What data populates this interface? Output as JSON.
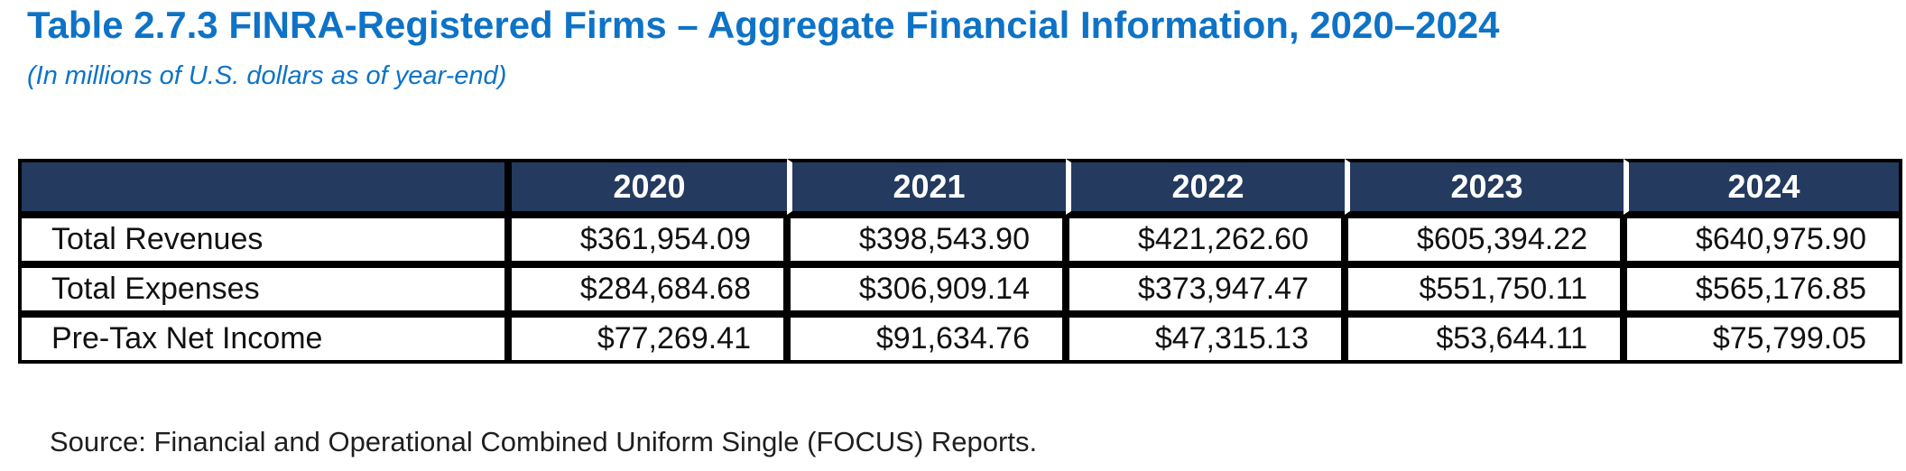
{
  "header": {
    "title": "Table 2.7.3 FINRA-Registered Firms – Aggregate Financial Information, 2020–2024",
    "subtitle": "(In millions of U.S. dollars as of year-end)"
  },
  "table": {
    "columns": [
      "2020",
      "2021",
      "2022",
      "2023",
      "2024"
    ],
    "rows": [
      {
        "label": "Total Revenues",
        "values": [
          "$361,954.09",
          "$398,543.90",
          "$421,262.60",
          "$605,394.22",
          "$640,975.90"
        ]
      },
      {
        "label": "Total Expenses",
        "values": [
          "$284,684.68",
          "$306,909.14",
          "$373,947.47",
          "$551,750.11",
          "$565,176.85"
        ]
      },
      {
        "label": "Pre-Tax Net Income",
        "values": [
          "$77,269.41",
          "$91,634.76",
          "$47,315.13",
          "$53,644.11",
          "$75,799.05"
        ]
      }
    ]
  },
  "footer": {
    "source": "Source: Financial and Operational Combined Uniform Single (FOCUS) Reports."
  },
  "colors": {
    "title_blue": "#0E73C6",
    "header_navy": "#243A5F",
    "grid_black": "#000000",
    "body_text": "#111111",
    "header_text": "#FFFFFF"
  },
  "chart_data": {
    "type": "table",
    "title": "Table 2.7.3 FINRA-Registered Firms – Aggregate Financial Information, 2020–2024",
    "subtitle": "(In millions of U.S. dollars as of year-end)",
    "categories": [
      "2020",
      "2021",
      "2022",
      "2023",
      "2024"
    ],
    "series": [
      {
        "name": "Total Revenues",
        "values": [
          361954.09,
          398543.9,
          421262.6,
          605394.22,
          640975.9
        ]
      },
      {
        "name": "Total Expenses",
        "values": [
          284684.68,
          306909.14,
          373947.47,
          551750.11,
          565176.85
        ]
      },
      {
        "name": "Pre-Tax Net Income",
        "values": [
          77269.41,
          91634.76,
          47315.13,
          53644.11,
          75799.05
        ]
      }
    ],
    "units": "millions of U.S. dollars, as of year-end",
    "source": "Source: Financial and Operational Combined Uniform Single (FOCUS) Reports."
  }
}
